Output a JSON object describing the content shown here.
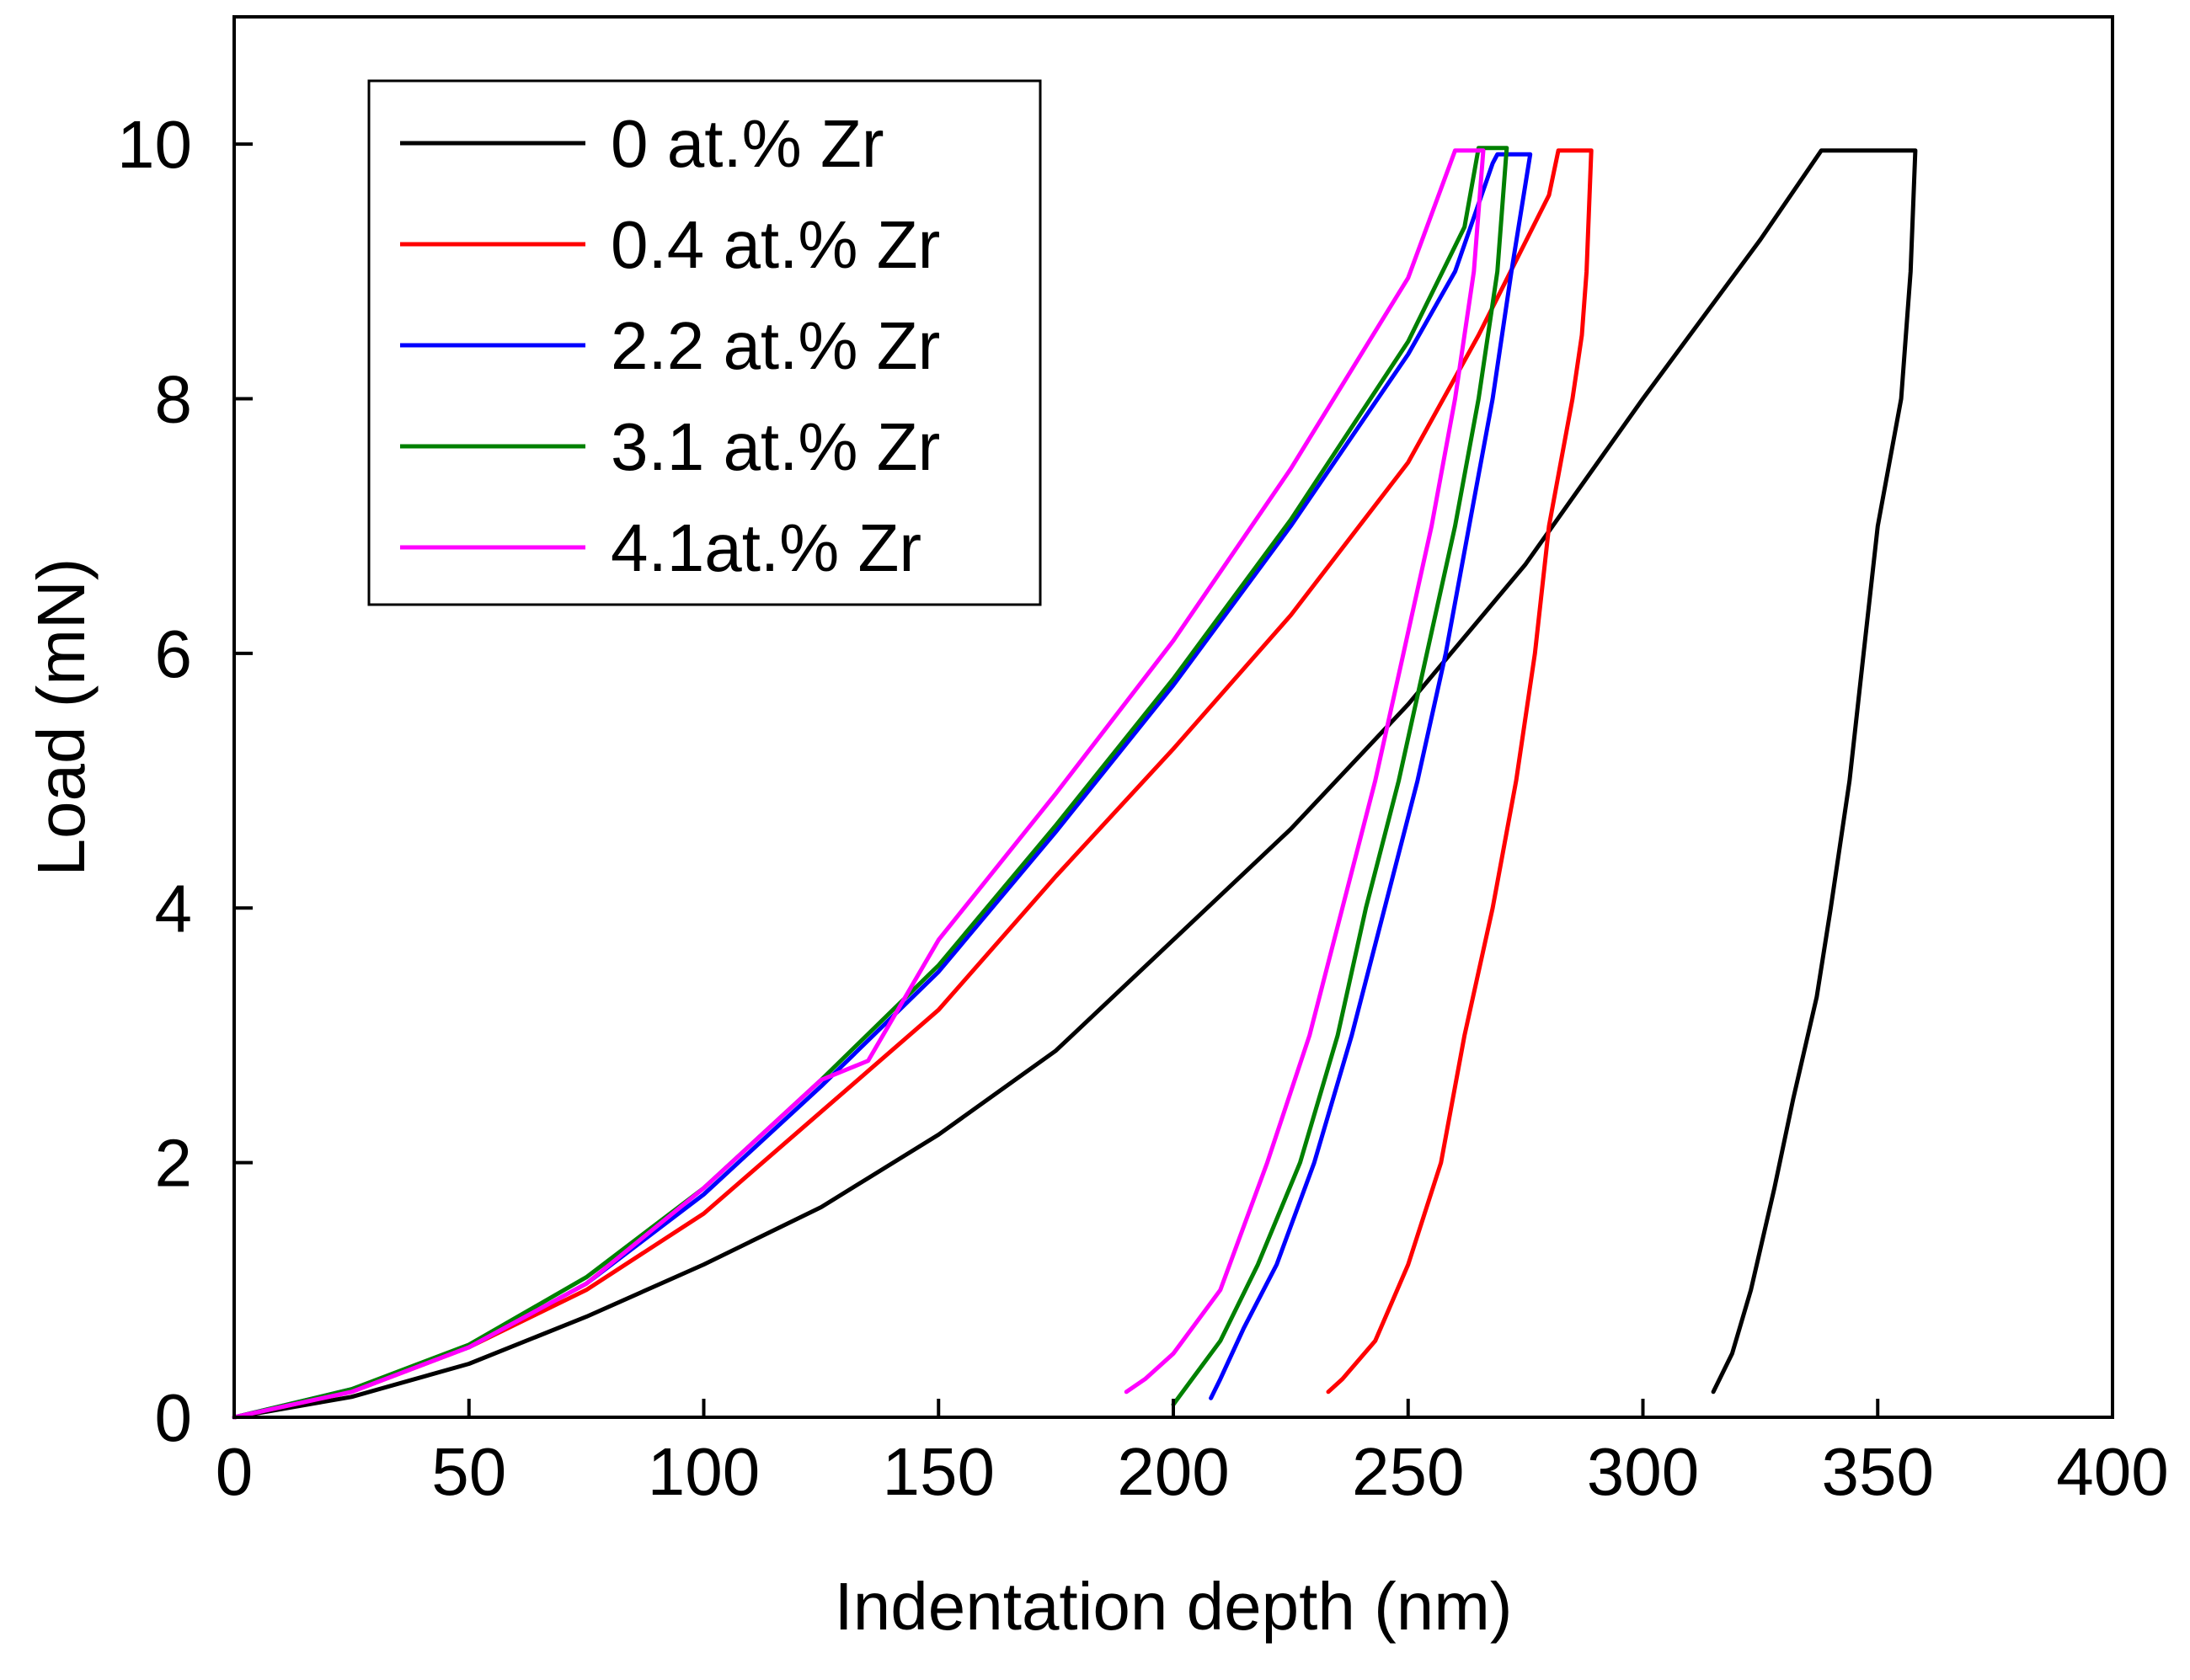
{
  "chart_data": {
    "type": "line",
    "title": "",
    "xlabel": "Indentation depth (nm)",
    "ylabel": "Load (mN)",
    "xlim": [
      0,
      400
    ],
    "ylim": [
      0,
      11
    ],
    "xticks": [
      0,
      50,
      100,
      150,
      200,
      250,
      300,
      350,
      400
    ],
    "yticks": [
      0,
      2,
      4,
      6,
      8,
      10
    ],
    "grid": false,
    "legend_position": "top-left",
    "series": [
      {
        "name": "0 at.% Zr",
        "color": "#000000",
        "points": [
          [
            0,
            0
          ],
          [
            25,
            0.16
          ],
          [
            50,
            0.42
          ],
          [
            75,
            0.79
          ],
          [
            100,
            1.2
          ],
          [
            125,
            1.65
          ],
          [
            150,
            2.22
          ],
          [
            175,
            2.88
          ],
          [
            200,
            3.75
          ],
          [
            225,
            4.62
          ],
          [
            250,
            5.6
          ],
          [
            275,
            6.7
          ],
          [
            300,
            8.0
          ],
          [
            325,
            9.25
          ],
          [
            338,
            9.95
          ],
          [
            358,
            9.95
          ],
          [
            357,
            9.0
          ],
          [
            355,
            8.0
          ],
          [
            350,
            7.0
          ],
          [
            347,
            6.0
          ],
          [
            344,
            5.0
          ],
          [
            340,
            4.0
          ],
          [
            337,
            3.3
          ],
          [
            332,
            2.5
          ],
          [
            328,
            1.8
          ],
          [
            323,
            1.0
          ],
          [
            319,
            0.5
          ],
          [
            315,
            0.2
          ]
        ]
      },
      {
        "name": "0.4 at.% Zr",
        "color": "#ff0000",
        "points": [
          [
            0,
            0
          ],
          [
            25,
            0.2
          ],
          [
            50,
            0.55
          ],
          [
            75,
            1.0
          ],
          [
            100,
            1.6
          ],
          [
            125,
            2.4
          ],
          [
            150,
            3.2
          ],
          [
            175,
            4.25
          ],
          [
            200,
            5.25
          ],
          [
            225,
            6.3
          ],
          [
            250,
            7.5
          ],
          [
            265,
            8.5
          ],
          [
            280,
            9.6
          ],
          [
            282,
            9.95
          ],
          [
            289,
            9.95
          ],
          [
            288,
            9.0
          ],
          [
            287,
            8.5
          ],
          [
            285,
            8.0
          ],
          [
            280,
            7.0
          ],
          [
            277,
            6.0
          ],
          [
            273,
            5.0
          ],
          [
            268,
            4.0
          ],
          [
            262,
            3.0
          ],
          [
            257,
            2.0
          ],
          [
            250,
            1.2
          ],
          [
            243,
            0.6
          ],
          [
            236,
            0.3
          ],
          [
            233,
            0.2
          ]
        ]
      },
      {
        "name": "2.2 at.% Zr",
        "color": "#0000ff",
        "points": [
          [
            0,
            0
          ],
          [
            25,
            0.22
          ],
          [
            50,
            0.55
          ],
          [
            75,
            1.05
          ],
          [
            100,
            1.75
          ],
          [
            125,
            2.6
          ],
          [
            150,
            3.5
          ],
          [
            175,
            4.6
          ],
          [
            200,
            5.75
          ],
          [
            225,
            7.0
          ],
          [
            250,
            8.35
          ],
          [
            260,
            9.0
          ],
          [
            268,
            9.85
          ],
          [
            269,
            9.92
          ],
          [
            276,
            9.92
          ],
          [
            272,
            9.0
          ],
          [
            268,
            8.0
          ],
          [
            263,
            7.0
          ],
          [
            258,
            6.0
          ],
          [
            252,
            5.0
          ],
          [
            245,
            4.0
          ],
          [
            238,
            3.0
          ],
          [
            230,
            2.0
          ],
          [
            222,
            1.2
          ],
          [
            215,
            0.7
          ],
          [
            210,
            0.3
          ],
          [
            208,
            0.15
          ]
        ]
      },
      {
        "name": "3.1 at.% Zr",
        "color": "#008000",
        "points": [
          [
            0,
            0
          ],
          [
            25,
            0.22
          ],
          [
            50,
            0.57
          ],
          [
            75,
            1.1
          ],
          [
            100,
            1.8
          ],
          [
            125,
            2.65
          ],
          [
            150,
            3.55
          ],
          [
            175,
            4.65
          ],
          [
            200,
            5.8
          ],
          [
            225,
            7.05
          ],
          [
            250,
            8.45
          ],
          [
            262,
            9.35
          ],
          [
            265,
            9.97
          ],
          [
            271,
            9.97
          ],
          [
            269,
            9.0
          ],
          [
            265,
            8.0
          ],
          [
            260,
            7.0
          ],
          [
            254,
            6.0
          ],
          [
            248,
            5.0
          ],
          [
            241,
            4.0
          ],
          [
            235,
            3.0
          ],
          [
            227,
            2.0
          ],
          [
            218,
            1.2
          ],
          [
            210,
            0.6
          ],
          [
            204,
            0.3
          ],
          [
            200,
            0.1
          ]
        ]
      },
      {
        "name": "4.1at.% Zr",
        "color": "#ff00ff",
        "points": [
          [
            0,
            0
          ],
          [
            25,
            0.2
          ],
          [
            50,
            0.55
          ],
          [
            75,
            1.05
          ],
          [
            100,
            1.8
          ],
          [
            125,
            2.65
          ],
          [
            135,
            2.8
          ],
          [
            150,
            3.75
          ],
          [
            175,
            4.9
          ],
          [
            200,
            6.1
          ],
          [
            225,
            7.45
          ],
          [
            250,
            8.95
          ],
          [
            260,
            9.95
          ],
          [
            266,
            9.95
          ],
          [
            264,
            9.0
          ],
          [
            260,
            8.0
          ],
          [
            255,
            7.0
          ],
          [
            249,
            6.0
          ],
          [
            243,
            5.0
          ],
          [
            236,
            4.0
          ],
          [
            229,
            3.0
          ],
          [
            220,
            2.0
          ],
          [
            210,
            1.0
          ],
          [
            200,
            0.5
          ],
          [
            194,
            0.3
          ],
          [
            190,
            0.2
          ]
        ]
      }
    ]
  }
}
